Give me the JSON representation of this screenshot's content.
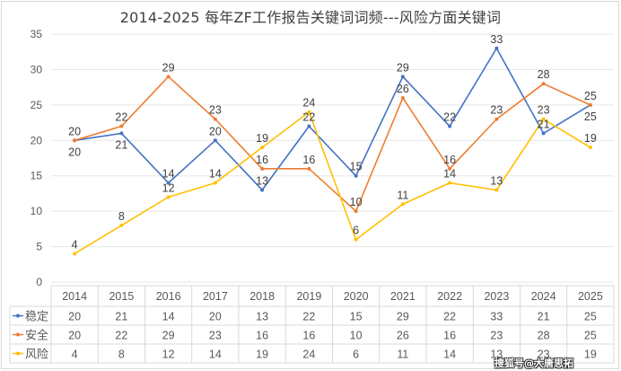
{
  "chart_data": {
    "type": "line",
    "title": "2014-2025 每年ZF工作报告关键词词频---风险方面关键词",
    "xlabel": "",
    "ylabel": "",
    "categories": [
      "2014",
      "2015",
      "2016",
      "2017",
      "2018",
      "2019",
      "2020",
      "2021",
      "2022",
      "2023",
      "2024",
      "2025"
    ],
    "ylim": [
      0,
      35
    ],
    "yticks": [
      0,
      5,
      10,
      15,
      20,
      25,
      30,
      35
    ],
    "grid": true,
    "legend_placement": "data-table-left",
    "series": [
      {
        "name": "稳定",
        "color": "#4472C4",
        "values": [
          20,
          21,
          14,
          20,
          13,
          22,
          15,
          29,
          22,
          33,
          21,
          25
        ]
      },
      {
        "name": "安全",
        "color": "#ED7D31",
        "values": [
          20,
          22,
          29,
          23,
          16,
          16,
          10,
          26,
          16,
          23,
          28,
          25
        ]
      },
      {
        "name": "风险",
        "color": "#FFC000",
        "values": [
          4,
          8,
          12,
          14,
          19,
          24,
          6,
          11,
          14,
          13,
          23,
          19
        ]
      }
    ],
    "data_table": true
  },
  "watermark": "搜狐号@大唐思拓"
}
